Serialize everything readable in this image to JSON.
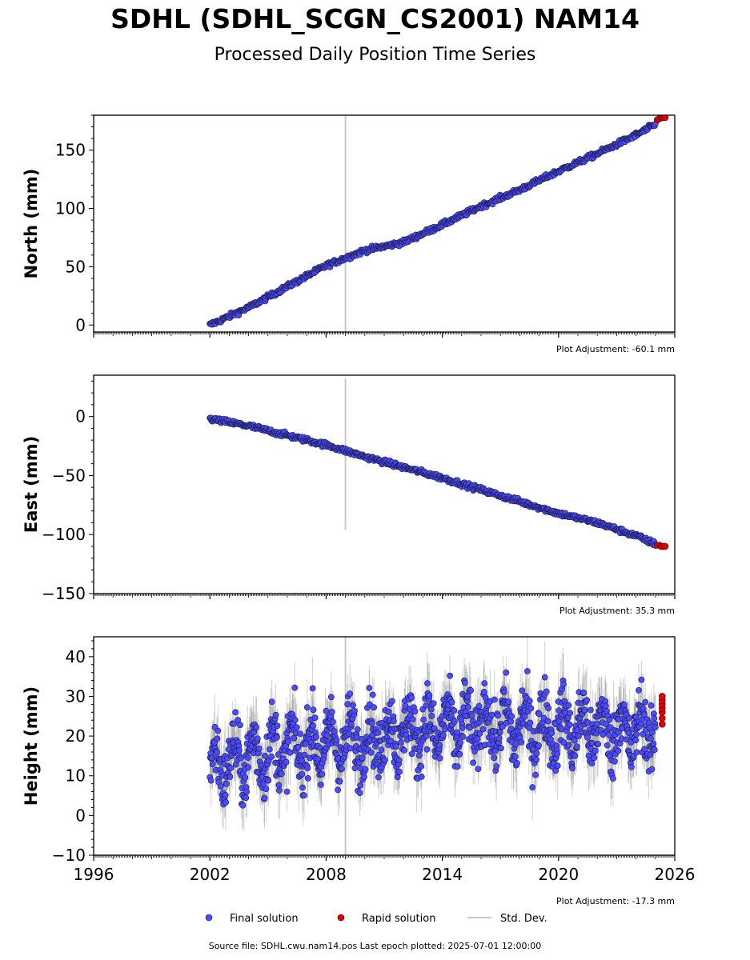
{
  "title": "SDHL (SDHL_SCGN_CS2001) NAM14",
  "subtitle": "Processed Daily Position Time Series",
  "source_text": "Source file: SDHL.cwu.nam14.pos  Last epoch plotted: 2025-07-01 12:00:00",
  "legend": {
    "final": "Final solution",
    "rapid": "Rapid solution",
    "std": "Std. Dev."
  },
  "colors": {
    "final": "#4b4bff",
    "rapid": "#e00000",
    "std": "#c8c8c8",
    "marker_edge": "#1a1a40"
  },
  "chart_data": [
    {
      "type": "scatter",
      "ylabel": "North (mm)",
      "adjustment": "Plot Adjustment: -60.1 mm",
      "xlim": [
        1996,
        2026
      ],
      "ylim": [
        -6,
        180
      ],
      "yticks": [
        0,
        50,
        100,
        150
      ],
      "ytick_labels": [
        "0",
        "50",
        "100",
        "150"
      ],
      "series": [
        {
          "kind": "final",
          "x": [
            2002.0,
            2004.0,
            2006.0,
            2008.0,
            2010.0,
            2012.0,
            2014.0,
            2016.0,
            2018.0,
            2020.0,
            2022.0,
            2024.0,
            2025.0
          ],
          "y": [
            0,
            15,
            33,
            51,
            64,
            71,
            86,
            102,
            116,
            132,
            147,
            163,
            172
          ],
          "noise": 1.5
        },
        {
          "kind": "rapid",
          "x": [
            2025.1,
            2025.2,
            2025.3,
            2025.4,
            2025.5
          ],
          "y": [
            176,
            177,
            178,
            178,
            178
          ]
        }
      ],
      "std_spikes": [
        {
          "x": 2009.0,
          "y0": 180,
          "y1": -6
        }
      ]
    },
    {
      "type": "scatter",
      "ylabel": "East (mm)",
      "adjustment": "Plot Adjustment: 35.3 mm",
      "xlim": [
        1996,
        2026
      ],
      "ylim": [
        -150,
        35
      ],
      "yticks": [
        0,
        -50,
        -100,
        -150
      ],
      "ytick_labels": [
        "0",
        "−50",
        "−100",
        "−150"
      ],
      "series": [
        {
          "kind": "final",
          "x": [
            2002.0,
            2004.0,
            2006.0,
            2008.0,
            2010.0,
            2012.0,
            2014.0,
            2016.0,
            2018.0,
            2020.0,
            2022.0,
            2024.0,
            2025.0
          ],
          "y": [
            -2,
            -8,
            -16,
            -24,
            -34,
            -43,
            -52,
            -62,
            -72,
            -82,
            -90,
            -101,
            -108
          ],
          "noise": 1.5
        },
        {
          "kind": "rapid",
          "x": [
            2025.1,
            2025.2,
            2025.3,
            2025.4,
            2025.5
          ],
          "y": [
            -109,
            -109,
            -110,
            -110,
            -110
          ]
        }
      ],
      "std_spikes": [
        {
          "x": 2009.0,
          "y0": 32,
          "y1": -96
        }
      ]
    },
    {
      "type": "scatter",
      "ylabel": "Height (mm)",
      "adjustment": "Plot Adjustment: -17.3 mm",
      "xlim": [
        1996,
        2026
      ],
      "ylim": [
        -10,
        45
      ],
      "yticks": [
        -10,
        0,
        10,
        20,
        30,
        40
      ],
      "ytick_labels": [
        "−10",
        "0",
        "10",
        "20",
        "30",
        "40"
      ],
      "xticks": [
        1996,
        2002,
        2008,
        2014,
        2020,
        2026
      ],
      "xtick_labels": [
        "1996",
        "2002",
        "2008",
        "2014",
        "2020",
        "2026"
      ],
      "series": [
        {
          "kind": "final",
          "x": [
            2002.0,
            2004.0,
            2006.0,
            2008.0,
            2010.0,
            2012.0,
            2014.0,
            2016.0,
            2018.0,
            2020.0,
            2022.0,
            2024.0,
            2025.0
          ],
          "y": [
            12,
            15,
            17,
            18,
            19,
            21,
            22,
            23,
            22,
            22,
            22,
            21,
            22
          ],
          "noise": 7.5
        },
        {
          "kind": "rapid",
          "x": [
            2025.35,
            2025.35,
            2025.35,
            2025.35,
            2025.35,
            2025.35,
            2025.35
          ],
          "y": [
            23,
            24.5,
            26,
            27,
            28,
            29,
            30
          ]
        }
      ],
      "std_spikes": [
        {
          "x": 2009.0,
          "y0": 45,
          "y1": -10
        }
      ]
    }
  ]
}
